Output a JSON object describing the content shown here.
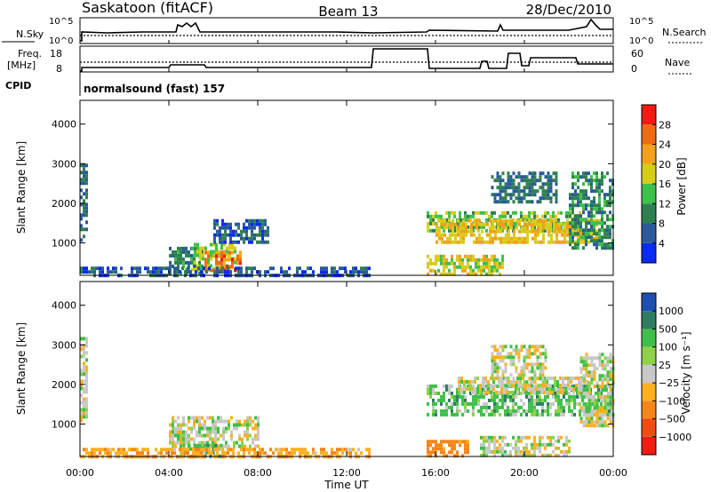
{
  "header": {
    "station": "Saskatoon (fitACF)",
    "beam": "Beam 13",
    "date": "28/Dec/2010"
  },
  "noise_panel": {
    "left_label": "N.Sky",
    "right_label": "N.Search",
    "y_top": "10^5",
    "y_bottom": "10^0",
    "right_top": "10^5",
    "right_bottom": "10^0"
  },
  "freq_panel": {
    "left_label": "Freq.",
    "left_unit": "[MHz]",
    "right_label": "Nave",
    "left_ticks": [
      "18",
      "8"
    ],
    "right_ticks": [
      "60",
      "0"
    ]
  },
  "cpid": {
    "label": "CPID",
    "text": "normalsound (fast) 157"
  },
  "colors": {
    "power": [
      "#0a2bf0",
      "#2a5a9a",
      "#2f8050",
      "#3cc14a",
      "#d8cc1a",
      "#f2a11a",
      "#f06a12",
      "#ee1c12"
    ],
    "velocity": [
      "#1d4fb3",
      "#2e7d62",
      "#3fbf4a",
      "#8fd14a",
      "#c8c8c8",
      "#ffb020",
      "#f7851a",
      "#f04d12",
      "#ee1c12"
    ]
  },
  "chart_data": [
    {
      "type": "heatmap",
      "quantity": "Power",
      "xlabel": "",
      "ylabel": "Slant Range [km]",
      "x_ticks": [
        "00:00",
        "04:00",
        "08:00",
        "12:00",
        "16:00",
        "20:00",
        "00:00"
      ],
      "y_ticks": [
        "1000",
        "2000",
        "3000",
        "4000"
      ],
      "ylim": [
        180,
        4600
      ],
      "colorbar": {
        "label": "Power [dB]",
        "ticks": [
          "4",
          "8",
          "12",
          "16",
          "20",
          "24",
          "28"
        ],
        "range": [
          0,
          32
        ]
      },
      "regions": [
        {
          "t": [
            0.0,
            0.3
          ],
          "r": [
            1100,
            3000
          ],
          "v": 8
        },
        {
          "t": [
            4.0,
            5.5
          ],
          "r": [
            200,
            900
          ],
          "v": 10
        },
        {
          "t": [
            5.0,
            7.0
          ],
          "r": [
            300,
            1000
          ],
          "v": 16
        },
        {
          "t": [
            5.6,
            7.2
          ],
          "r": [
            300,
            800
          ],
          "v": 26
        },
        {
          "t": [
            6.0,
            8.5
          ],
          "r": [
            1000,
            1600
          ],
          "v": 6
        },
        {
          "t": [
            0.0,
            13.0
          ],
          "r": [
            200,
            400
          ],
          "v": 6
        },
        {
          "t": [
            15.6,
            22.5
          ],
          "r": [
            1300,
            1800
          ],
          "v": 14
        },
        {
          "t": [
            16.0,
            23.5
          ],
          "r": [
            1000,
            1600
          ],
          "v": 20
        },
        {
          "t": [
            15.6,
            19.0
          ],
          "r": [
            250,
            700
          ],
          "v": 18
        },
        {
          "t": [
            18.5,
            21.5
          ],
          "r": [
            2000,
            2800
          ],
          "v": 8
        },
        {
          "t": [
            22.0,
            24.0
          ],
          "r": [
            900,
            2800
          ],
          "v": 10
        }
      ]
    },
    {
      "type": "heatmap",
      "quantity": "Velocity",
      "xlabel": "Time UT",
      "ylabel": "Slant Range [km]",
      "x_ticks": [
        "00:00",
        "04:00",
        "08:00",
        "12:00",
        "16:00",
        "20:00",
        "00:00"
      ],
      "y_ticks": [
        "1000",
        "2000",
        "3000",
        "4000"
      ],
      "ylim": [
        180,
        4600
      ],
      "colorbar": {
        "label": "Velocity [m s⁻¹]",
        "ticks": [
          "1000",
          "500",
          "100",
          "25",
          "−25",
          "−100",
          "−500",
          "−1000"
        ]
      },
      "regions": [
        {
          "t": [
            0.0,
            0.3
          ],
          "r": [
            1100,
            3200
          ],
          "v": 0
        },
        {
          "t": [
            4.0,
            8.0
          ],
          "r": [
            400,
            1200
          ],
          "v": 0
        },
        {
          "t": [
            4.5,
            6.5
          ],
          "r": [
            200,
            500
          ],
          "v": 80
        },
        {
          "t": [
            0.0,
            13.0
          ],
          "r": [
            200,
            400
          ],
          "v": -80
        },
        {
          "t": [
            15.6,
            24.0
          ],
          "r": [
            1200,
            2000
          ],
          "v": 60
        },
        {
          "t": [
            17.0,
            23.0
          ],
          "r": [
            1800,
            2200
          ],
          "v": 0
        },
        {
          "t": [
            15.6,
            17.5
          ],
          "r": [
            200,
            600
          ],
          "v": -150
        },
        {
          "t": [
            18.0,
            22.0
          ],
          "r": [
            200,
            700
          ],
          "v": 0
        },
        {
          "t": [
            18.5,
            21.0
          ],
          "r": [
            2000,
            3000
          ],
          "v": 0
        },
        {
          "t": [
            22.5,
            24.0
          ],
          "r": [
            1000,
            2800
          ],
          "v": 0
        }
      ]
    }
  ]
}
